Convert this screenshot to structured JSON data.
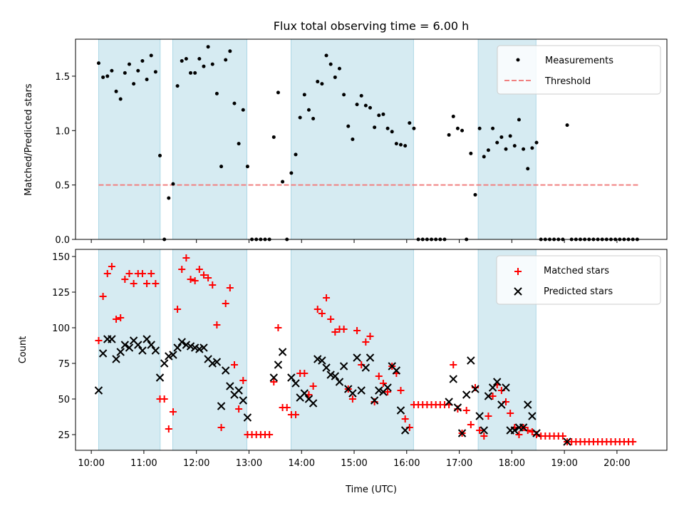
{
  "chart_data": [
    {
      "type": "scatter",
      "panel": "top",
      "title": "Flux total observing time = 6.00 h",
      "xlabel": "",
      "ylabel": "Matched/Predicted stars",
      "xlim": [
        9.7,
        20.95
      ],
      "ylim": [
        0,
        1.84
      ],
      "yticks": [
        0.0,
        0.5,
        1.0,
        1.5
      ],
      "ytick_labels": [
        "0.0",
        "0.5",
        "1.0",
        "1.5"
      ],
      "grid": false,
      "legend_position": "top-right",
      "legend": [
        {
          "label": "Measurements",
          "marker": "dot",
          "color": "#000000"
        },
        {
          "label": "Threshold",
          "marker": "dashed-line",
          "color": "#f08080"
        }
      ],
      "threshold": {
        "value": 0.5,
        "x_range": [
          10.14,
          20.4
        ],
        "color": "#f08080"
      },
      "series": [
        {
          "name": "Measurements",
          "color": "#000000",
          "x_start": 10.14,
          "x_step": 0.0833,
          "values": [
            1.62,
            1.49,
            1.5,
            1.55,
            1.36,
            1.29,
            1.53,
            1.61,
            1.43,
            1.55,
            1.64,
            1.47,
            1.69,
            1.54,
            0.77,
            0,
            0.38,
            0.51,
            1.41,
            1.64,
            1.66,
            1.53,
            1.53,
            1.66,
            1.59,
            1.77,
            1.61,
            1.34,
            0.67,
            1.65,
            1.73,
            1.25,
            0.88,
            1.19,
            0.67,
            0,
            0,
            0,
            0,
            0,
            0.94,
            1.35,
            0.53,
            0,
            0.61,
            0.78,
            1.12,
            1.33,
            1.19,
            1.11,
            1.45,
            1.43,
            1.69,
            1.61,
            1.49,
            1.57,
            1.33,
            1.04,
            0.92,
            1.24,
            1.32,
            1.23,
            1.21,
            1.03,
            1.14,
            1.15,
            1.02,
            0.99,
            0.88,
            0.87,
            0.86,
            1.07,
            1.02,
            0,
            0,
            0,
            0,
            0,
            0,
            0,
            0.96,
            1.13,
            1.02,
            1.0,
            0,
            0.79,
            0.41,
            1.02,
            0.76,
            0.82,
            1.02,
            0.89,
            0.94,
            0.83,
            0.95,
            0.86,
            1.1,
            0.83,
            0.65,
            0.84,
            0.89,
            0,
            0,
            0,
            0,
            0,
            0,
            1.05,
            0,
            0,
            0,
            0,
            0,
            0,
            0,
            0,
            0,
            0,
            0,
            0,
            0,
            0,
            0,
            0
          ]
        }
      ]
    },
    {
      "type": "scatter",
      "panel": "bottom",
      "title": "",
      "xlabel": "Time (UTC)",
      "ylabel": "Count",
      "xlim": [
        9.7,
        20.95
      ],
      "ylim": [
        14,
        155
      ],
      "yticks": [
        25,
        50,
        75,
        100,
        125,
        150
      ],
      "ytick_labels": [
        "25",
        "50",
        "75",
        "100",
        "125",
        "150"
      ],
      "xticks": [
        10,
        11,
        12,
        13,
        14,
        15,
        16,
        17,
        18,
        19,
        20
      ],
      "xtick_labels": [
        "10:00",
        "11:00",
        "12:00",
        "13:00",
        "14:00",
        "15:00",
        "16:00",
        "17:00",
        "18:00",
        "19:00",
        "20:00"
      ],
      "grid": false,
      "legend_position": "top-right",
      "legend": [
        {
          "label": "Matched stars",
          "marker": "plus",
          "color": "#ff0000"
        },
        {
          "label": "Predicted stars",
          "marker": "x",
          "color": "#000000"
        }
      ],
      "series": [
        {
          "name": "Matched stars",
          "marker": "plus",
          "color": "#ff0000",
          "x_start": 10.14,
          "x_step": 0.0833,
          "values": [
            91,
            122,
            138,
            143,
            106,
            107,
            134,
            138,
            131,
            138,
            138,
            131,
            138,
            131,
            50,
            50,
            29,
            41,
            113,
            141,
            149,
            134,
            133,
            141,
            137,
            135,
            130,
            102,
            30,
            117,
            128,
            74,
            43,
            63,
            25,
            25,
            25,
            25,
            25,
            25,
            62,
            100,
            44,
            44,
            39,
            39,
            68,
            68,
            53,
            59,
            113,
            110,
            121,
            106,
            97,
            99,
            99,
            57,
            50,
            98,
            74,
            90,
            94,
            48,
            66,
            61,
            55,
            73,
            68,
            56,
            36,
            30,
            46,
            46,
            46,
            46,
            46,
            46,
            46,
            46,
            46,
            74,
            43,
            26,
            42,
            32,
            58,
            28,
            24,
            38,
            52,
            60,
            56,
            48,
            40,
            30,
            25,
            30,
            28,
            27,
            25,
            24,
            24,
            24,
            24,
            24,
            24,
            20,
            20,
            20,
            20,
            20,
            20,
            20,
            20,
            20,
            20,
            20,
            20,
            20,
            20,
            20,
            20
          ]
        },
        {
          "name": "Predicted stars",
          "marker": "x",
          "color": "#000000",
          "x_start": 10.14,
          "x_step": 0.0833,
          "values": [
            56,
            82,
            92,
            92,
            78,
            83,
            88,
            86,
            91,
            88,
            84,
            92,
            88,
            84,
            65,
            75,
            80,
            81,
            86,
            90,
            88,
            87,
            86,
            85,
            86,
            78,
            75,
            76,
            45,
            70,
            59,
            53,
            56,
            49,
            37,
            null,
            null,
            null,
            null,
            null,
            65,
            74,
            83,
            null,
            65,
            61,
            51,
            54,
            50,
            47,
            78,
            77,
            72,
            67,
            66,
            62,
            73,
            57,
            54,
            79,
            56,
            72,
            79,
            49,
            56,
            55,
            58,
            73,
            70,
            42,
            28,
            null,
            null,
            null,
            null,
            null,
            null,
            null,
            null,
            null,
            48,
            64,
            44,
            26,
            53,
            77,
            57,
            38,
            28,
            52,
            58,
            62,
            46,
            58,
            28,
            28,
            30,
            30,
            46,
            38,
            26,
            null,
            null,
            null,
            null,
            null,
            null,
            20,
            null,
            null,
            null,
            null,
            null,
            null,
            null,
            null,
            null,
            null,
            null,
            null,
            null,
            null,
            null,
            null
          ]
        }
      ]
    }
  ],
  "observing_windows": [
    {
      "start": 10.14,
      "end": 11.31
    },
    {
      "start": 11.55,
      "end": 12.96
    },
    {
      "start": 13.8,
      "end": 16.13
    },
    {
      "start": 17.36,
      "end": 18.46
    }
  ],
  "colors": {
    "window_fill": "#add8e6",
    "measurement": "#000000",
    "threshold": "#f08080",
    "matched": "#ff0000",
    "predicted": "#000000"
  }
}
